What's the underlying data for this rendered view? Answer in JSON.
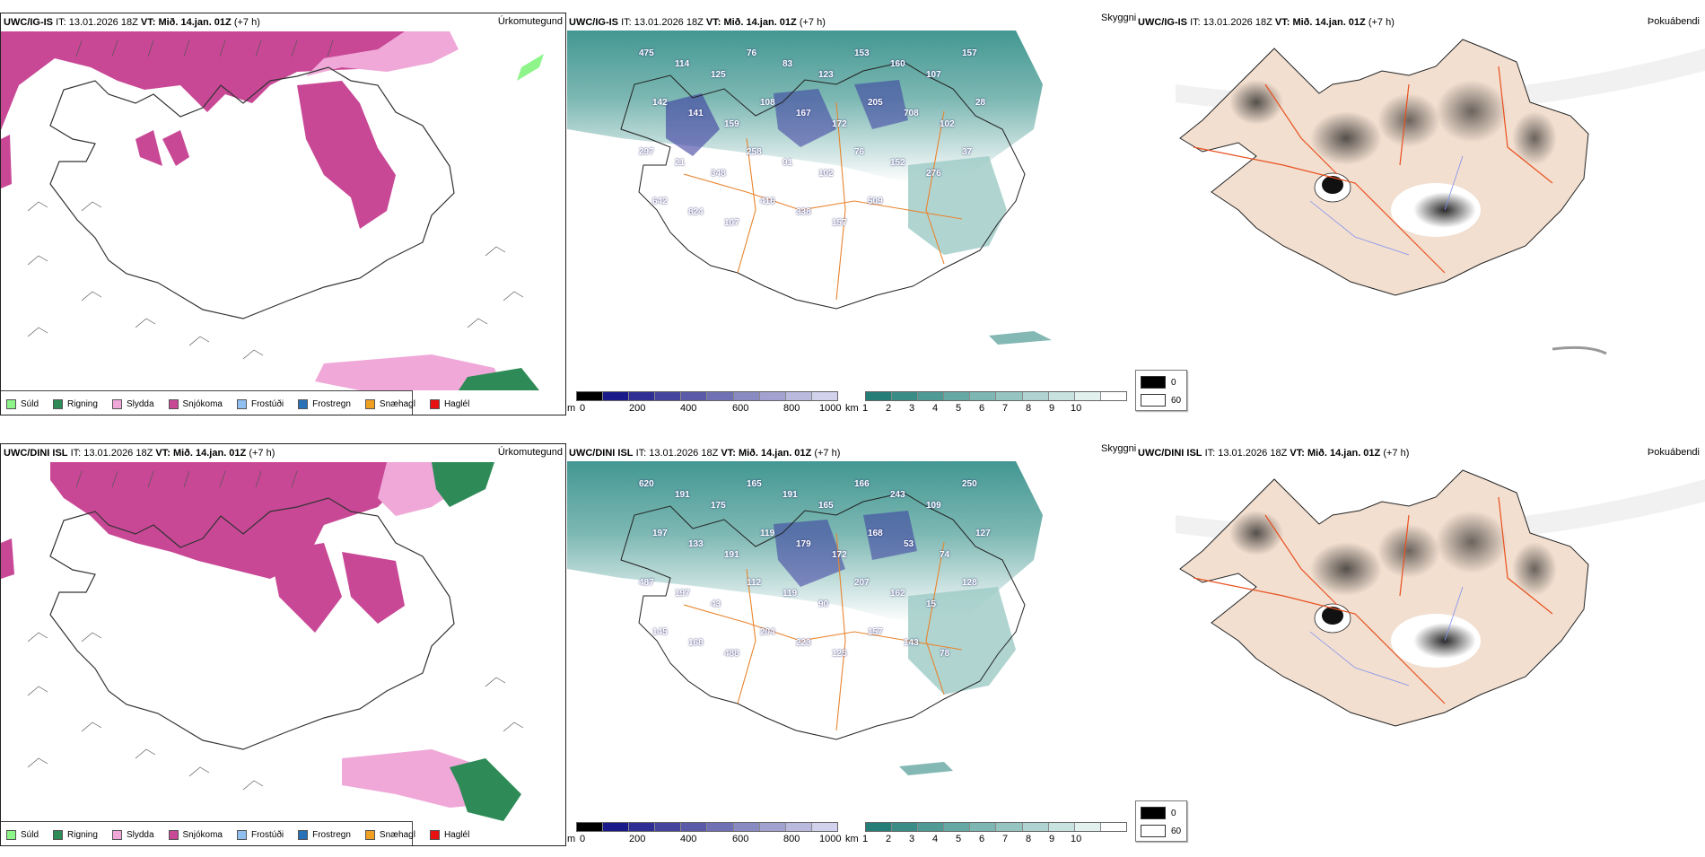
{
  "rows": [
    {
      "model": "UWC/IG-IS",
      "it_label": "IT:",
      "it_value": "13.01.2026 18Z",
      "vt_label": "VT:",
      "vt_value": "Mið. 14.jan. 01Z",
      "lead": "(+7 h)",
      "ceiling_labels": [
        "475",
        "114",
        "125",
        "76",
        "83",
        "123",
        "153",
        "160",
        "107",
        "157",
        "142",
        "141",
        "159",
        "108",
        "167",
        "172",
        "205",
        "708",
        "102",
        "28",
        "297",
        "21",
        "348",
        "258",
        "91",
        "102",
        "76",
        "152",
        "276",
        "37",
        "642",
        "824",
        "107",
        "416",
        "338",
        "157",
        "509"
      ]
    },
    {
      "model": "UWC/DINI ISL",
      "it_label": "IT:",
      "it_value": "13.01.2026 18Z",
      "vt_label": "VT:",
      "vt_value": "Mið. 14.jan. 01Z",
      "lead": "(+7 h)",
      "ceiling_labels": [
        "620",
        "191",
        "175",
        "165",
        "191",
        "165",
        "166",
        "243",
        "109",
        "250",
        "197",
        "133",
        "191",
        "119",
        "179",
        "172",
        "168",
        "53",
        "74",
        "127",
        "487",
        "197",
        "43",
        "112",
        "119",
        "90",
        "207",
        "162",
        "15",
        "128",
        "145",
        "168",
        "488",
        "204",
        "223",
        "125",
        "157",
        "143",
        "78"
      ]
    }
  ],
  "panel_titles": {
    "precip": "Úrkomutegund",
    "visibility": "Skyggni",
    "fog": "Þokuábendi"
  },
  "precip_legend": [
    {
      "label": "Súld",
      "color": "#8ef58a"
    },
    {
      "label": "Rigning",
      "color": "#2e8b57"
    },
    {
      "label": "Slydda",
      "color": "#f0a8d8"
    },
    {
      "label": "Snjókoma",
      "color": "#c84896"
    },
    {
      "label": "Frostúði",
      "color": "#90c0f0"
    },
    {
      "label": "Frostregn",
      "color": "#2870b8"
    },
    {
      "label": "Snæhagl",
      "color": "#f0a020"
    },
    {
      "label": "Haglél",
      "color": "#e81010"
    }
  ],
  "ceiling_colorbar": {
    "unit": "m",
    "ticks": [
      "0",
      "200",
      "400",
      "600",
      "800",
      "1000"
    ],
    "colors": [
      "#000000",
      "#1a1a8a",
      "#2e2e94",
      "#45459e",
      "#5a5aa8",
      "#7070b4",
      "#8a8ac2",
      "#a2a2d0",
      "#babade",
      "#d2d2ec"
    ]
  },
  "visibility_colorbar": {
    "unit": "km",
    "ticks": [
      "1",
      "2",
      "3",
      "4",
      "5",
      "6",
      "7",
      "8",
      "9",
      "10"
    ],
    "colors": [
      "#257d78",
      "#3a8c87",
      "#4f9a95",
      "#66a8a4",
      "#7db6b2",
      "#95c4c1",
      "#aed3d0",
      "#c8e2df",
      "#e2f0ee",
      "#ffffff"
    ]
  },
  "fog_legend": [
    {
      "label": "0",
      "color": "#000000"
    },
    {
      "label": "60",
      "color": "#ffffff"
    }
  ],
  "colors": {
    "sea_teal": "#2e8c86",
    "land_fog": "#f2dfd0",
    "roads": "#e8501e",
    "road_orange": "#e8842e",
    "rivers": "#7f8ff0"
  }
}
